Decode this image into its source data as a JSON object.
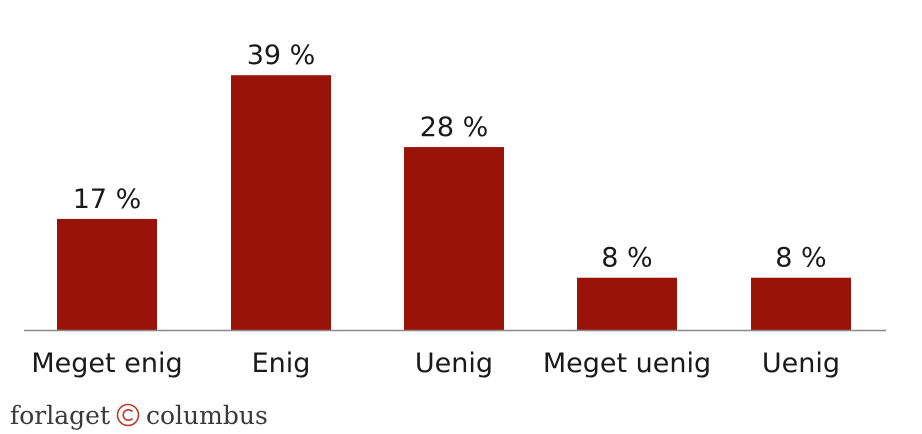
{
  "chart_data": {
    "type": "bar",
    "categories": [
      "Meget enig",
      "Enig",
      "Uenig",
      "Meget uenig",
      "Uenig"
    ],
    "values": [
      17,
      39,
      28,
      8,
      8
    ],
    "value_labels": [
      "17 %",
      "39 %",
      "28 %",
      "8 %",
      "8 %"
    ],
    "ylim": [
      0,
      45
    ],
    "grid": false,
    "legend": "none",
    "bar_color": "#9a1308",
    "axis_color": "#8a8a8a"
  },
  "brand": {
    "left": "forlaget",
    "right": "columbus",
    "logo_icon": "columbus-c-logo",
    "logo_color": "#c0392b"
  }
}
